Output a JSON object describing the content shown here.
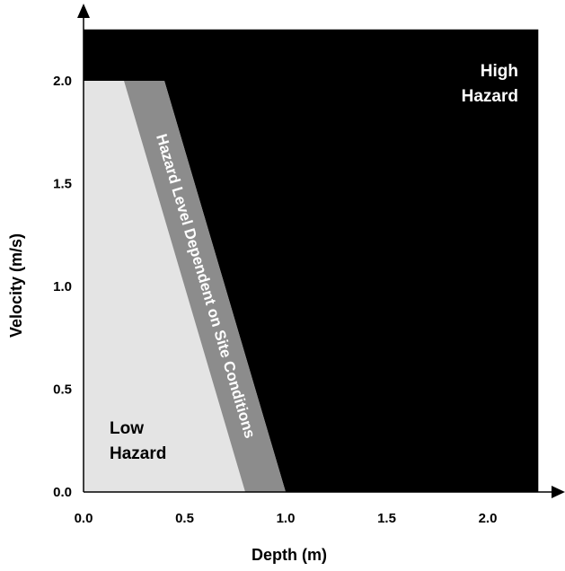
{
  "chart_data": {
    "type": "area",
    "xlabel": "Depth (m)",
    "ylabel": "Velocity (m/s)",
    "xlim": [
      0,
      2.25
    ],
    "ylim": [
      0,
      2.25
    ],
    "x_ticks": [
      "0.0",
      "0.5",
      "1.0",
      "1.5",
      "2.0"
    ],
    "y_ticks": [
      "0.0",
      "0.5",
      "1.0",
      "1.5",
      "2.0"
    ],
    "grid": false,
    "regions": [
      {
        "key": "low",
        "label_lines": [
          "Low",
          "Hazard"
        ],
        "color": "#e4e4e4",
        "polygon": [
          [
            0,
            0
          ],
          [
            0,
            2.0
          ],
          [
            0.2,
            2.0
          ],
          [
            0.8,
            0
          ]
        ]
      },
      {
        "key": "dependent",
        "label_lines": [
          "Hazard Level Dependent on Site Conditions"
        ],
        "color": "#8c8c8c",
        "polygon": [
          [
            0.2,
            2.0
          ],
          [
            0.4,
            2.0
          ],
          [
            1.0,
            0
          ],
          [
            0.8,
            0
          ]
        ]
      },
      {
        "key": "high",
        "label_lines": [
          "High",
          "Hazard"
        ],
        "color": "#000000",
        "polygon": [
          [
            0,
            2.0
          ],
          [
            0,
            2.25
          ],
          [
            2.25,
            2.25
          ],
          [
            2.25,
            0
          ],
          [
            1.0,
            0
          ],
          [
            0.4,
            2.0
          ]
        ]
      }
    ]
  }
}
